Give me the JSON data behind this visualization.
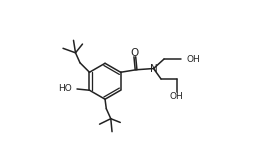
{
  "background": "#ffffff",
  "line_color": "#222222",
  "line_width": 1.1,
  "font_size": 6.5,
  "figsize": [
    2.6,
    1.65
  ],
  "dpi": 100,
  "xlim": [
    0,
    10
  ],
  "ylim": [
    0,
    6.5
  ]
}
